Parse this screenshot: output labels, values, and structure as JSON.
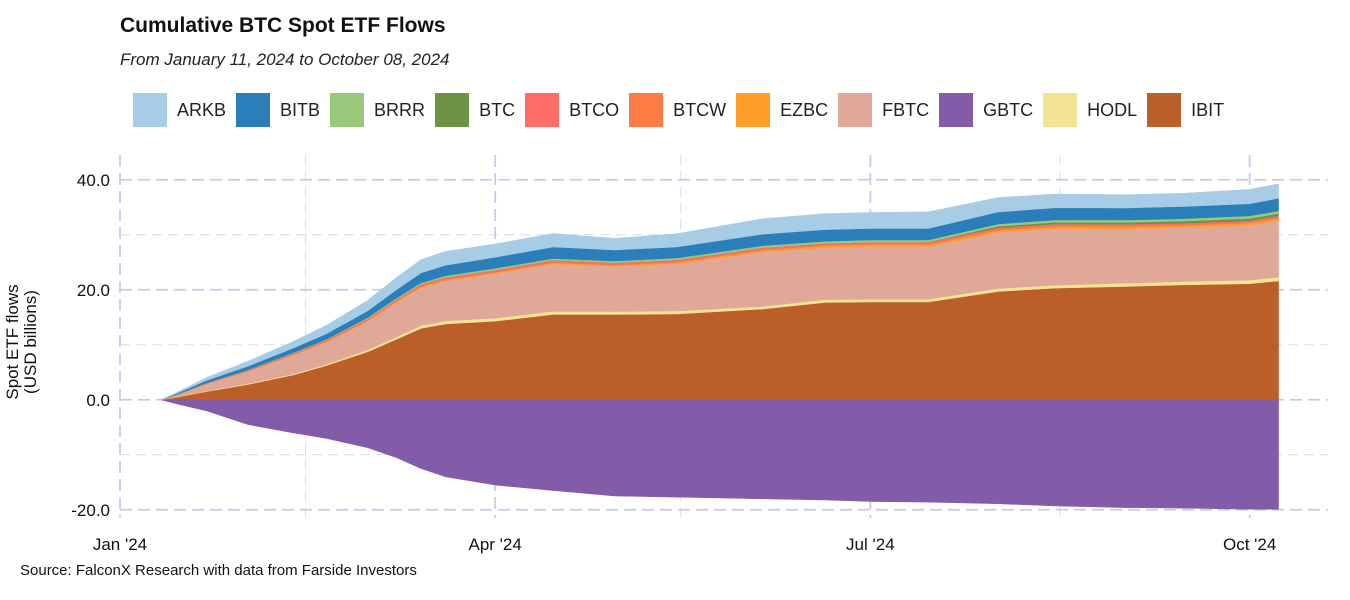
{
  "title": "Cumulative BTC Spot ETF Flows",
  "subtitle": "From January 11, 2024 to October 08, 2024",
  "source": "Source: FalconX Research with data from Farside Investors",
  "chart_data": {
    "type": "area",
    "stacked": true,
    "title": "Cumulative BTC Spot ETF Flows",
    "subtitle": "From January 11, 2024 to October 08, 2024",
    "ylabel_line1": "Spot ETF flows",
    "ylabel_line2": "(USD billions)",
    "ylim": [
      -21.5,
      44.5
    ],
    "yticks": [
      -20,
      0,
      20,
      40
    ],
    "ytick_labels": [
      "-20.0",
      "0.0",
      "20.0",
      "40.0"
    ],
    "x_start": "2024-01-01",
    "x_end": "2024-10-20",
    "xticks": [
      {
        "date": "2024-01-01",
        "label": "Jan '24"
      },
      {
        "date": "2024-04-01",
        "label": "Apr '24"
      },
      {
        "date": "2024-07-01",
        "label": "Jul '24"
      },
      {
        "date": "2024-10-01",
        "label": "Oct '24"
      }
    ],
    "minor_x_dates": [
      "2024-02-15",
      "2024-05-16",
      "2024-08-16"
    ],
    "legend_position": "top",
    "dates": [
      "2024-01-11",
      "2024-01-15",
      "2024-01-22",
      "2024-02-01",
      "2024-02-12",
      "2024-02-20",
      "2024-03-01",
      "2024-03-08",
      "2024-03-14",
      "2024-03-20",
      "2024-04-01",
      "2024-04-15",
      "2024-04-30",
      "2024-05-15",
      "2024-06-05",
      "2024-06-20",
      "2024-07-01",
      "2024-07-15",
      "2024-08-01",
      "2024-08-15",
      "2024-09-01",
      "2024-09-15",
      "2024-10-01",
      "2024-10-08"
    ],
    "series": [
      {
        "name": "IBIT",
        "color": "#bb5e27",
        "values": [
          0.0,
          0.5,
          1.5,
          2.8,
          4.5,
          6.2,
          8.7,
          11.0,
          13.0,
          13.8,
          14.3,
          15.5,
          15.5,
          15.6,
          16.5,
          17.7,
          17.8,
          17.8,
          19.7,
          20.3,
          20.6,
          20.9,
          21.1,
          21.6
        ]
      },
      {
        "name": "HODL",
        "color": "#f2e493",
        "values": [
          0.0,
          0.05,
          0.1,
          0.15,
          0.2,
          0.25,
          0.35,
          0.4,
          0.5,
          0.55,
          0.55,
          0.6,
          0.55,
          0.55,
          0.5,
          0.5,
          0.5,
          0.5,
          0.55,
          0.55,
          0.6,
          0.6,
          0.65,
          0.7
        ]
      },
      {
        "name": "GBTC",
        "color": "#835ca9",
        "values": [
          0.0,
          -0.8,
          -2.0,
          -4.5,
          -6.0,
          -7.0,
          -8.7,
          -10.5,
          -12.5,
          -14.0,
          -15.5,
          -16.5,
          -17.5,
          -17.7,
          -18.0,
          -18.2,
          -18.5,
          -18.6,
          -18.9,
          -19.3,
          -19.6,
          -19.7,
          -19.9,
          -19.9
        ]
      },
      {
        "name": "FBTC",
        "color": "#e0a898",
        "values": [
          0.0,
          0.4,
          1.3,
          2.2,
          3.4,
          4.0,
          5.2,
          6.3,
          6.9,
          7.3,
          8.1,
          8.6,
          8.2,
          8.6,
          9.9,
          9.5,
          9.6,
          9.6,
          10.2,
          10.3,
          9.9,
          9.8,
          10.0,
          10.3
        ]
      },
      {
        "name": "EZBC",
        "color": "#ff9f29",
        "values": [
          0.0,
          0.02,
          0.04,
          0.06,
          0.09,
          0.11,
          0.15,
          0.18,
          0.19,
          0.2,
          0.21,
          0.22,
          0.23,
          0.25,
          0.3,
          0.32,
          0.32,
          0.33,
          0.36,
          0.38,
          0.38,
          0.39,
          0.4,
          0.4
        ]
      },
      {
        "name": "BTCW",
        "color": "#fd7b45",
        "values": [
          0.0,
          0.01,
          0.02,
          0.03,
          0.04,
          0.05,
          0.06,
          0.06,
          0.07,
          0.07,
          0.07,
          0.07,
          0.07,
          0.07,
          0.07,
          0.07,
          0.07,
          0.07,
          0.07,
          0.07,
          0.07,
          0.07,
          0.07,
          0.07
        ]
      },
      {
        "name": "BTCO",
        "color": "#fd6e66",
        "values": [
          0.0,
          0.04,
          0.1,
          0.15,
          0.22,
          0.26,
          0.3,
          0.33,
          0.36,
          0.37,
          0.38,
          0.4,
          0.37,
          0.38,
          0.4,
          0.38,
          0.38,
          0.38,
          0.38,
          0.37,
          0.36,
          0.35,
          0.36,
          0.37
        ]
      },
      {
        "name": "BTC",
        "color": "#6d9245",
        "values": [
          0.0,
          0.0,
          0.0,
          0.0,
          0.0,
          0.0,
          0.0,
          0.0,
          0.0,
          0.0,
          0.0,
          0.0,
          0.0,
          0.0,
          0.0,
          0.0,
          0.0,
          0.0,
          0.3,
          0.32,
          0.35,
          0.38,
          0.4,
          0.42
        ]
      },
      {
        "name": "BRRR",
        "color": "#98c97c",
        "values": [
          0.0,
          0.01,
          0.03,
          0.06,
          0.1,
          0.13,
          0.17,
          0.21,
          0.25,
          0.28,
          0.3,
          0.31,
          0.32,
          0.33,
          0.35,
          0.36,
          0.37,
          0.38,
          0.4,
          0.42,
          0.43,
          0.45,
          0.47,
          0.48
        ]
      },
      {
        "name": "BITB",
        "color": "#2a7fbb",
        "values": [
          0.0,
          0.2,
          0.45,
          0.65,
          0.85,
          1.0,
          1.2,
          1.5,
          1.8,
          1.9,
          2.0,
          2.1,
          2.0,
          2.0,
          2.1,
          2.1,
          2.1,
          2.1,
          2.2,
          2.2,
          2.2,
          2.2,
          2.2,
          2.3
        ]
      },
      {
        "name": "ARKB",
        "color": "#a7cce6",
        "values": [
          0.0,
          0.2,
          0.5,
          0.9,
          1.2,
          1.5,
          1.9,
          2.2,
          2.4,
          2.5,
          2.4,
          2.4,
          2.1,
          2.4,
          2.8,
          2.9,
          2.9,
          3.0,
          2.6,
          2.5,
          2.4,
          2.4,
          2.6,
          2.6
        ]
      }
    ],
    "legend_order": [
      "ARKB",
      "BITB",
      "BRRR",
      "BTC",
      "BTCO",
      "BTCW",
      "EZBC",
      "FBTC",
      "GBTC",
      "HODL",
      "IBIT"
    ]
  }
}
